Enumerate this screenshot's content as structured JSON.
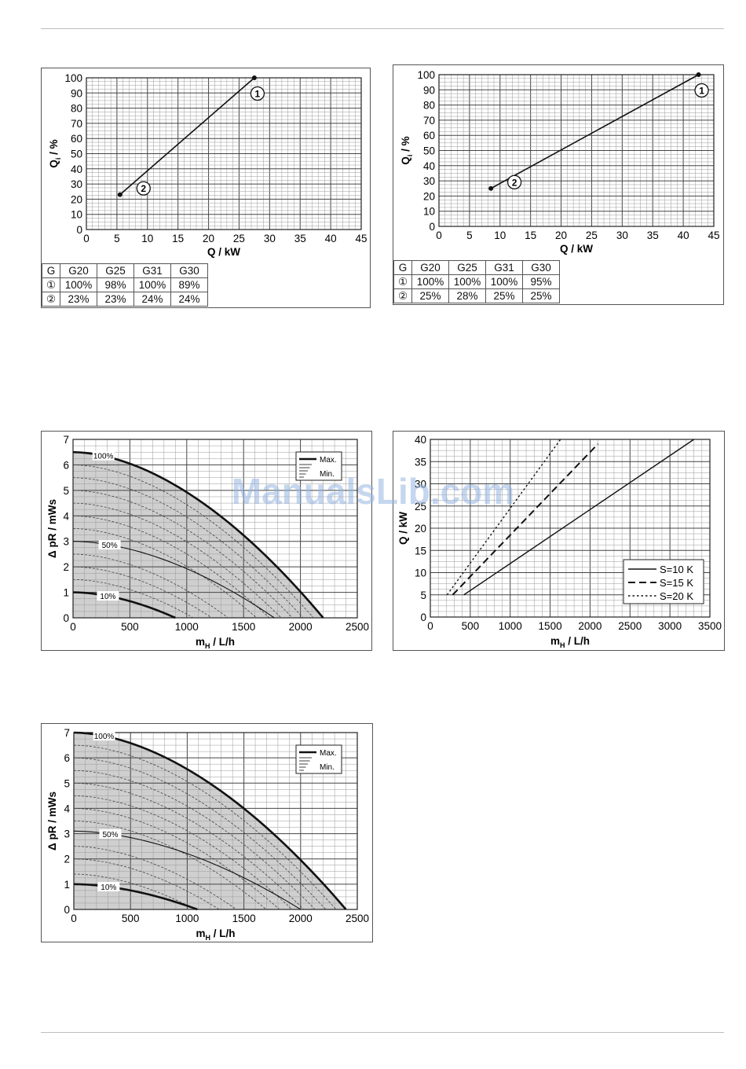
{
  "page": {
    "watermark": "ManualsLib.com"
  },
  "tables": [
    {
      "header": [
        "G",
        "G20",
        "G25",
        "G31",
        "G30"
      ],
      "rows": [
        [
          "①",
          "100%",
          "98%",
          "100%",
          "89%"
        ],
        [
          "②",
          "23%",
          "23%",
          "24%",
          "24%"
        ]
      ]
    },
    {
      "header": [
        "G",
        "G20",
        "G25",
        "G31",
        "G30"
      ],
      "rows": [
        [
          "①",
          "100%",
          "100%",
          "100%",
          "95%"
        ],
        [
          "②",
          "25%",
          "28%",
          "25%",
          "25%"
        ]
      ]
    }
  ],
  "chart_data": [
    {
      "type": "line",
      "xlabel": "Q / kW",
      "ylabel": "Qi / %",
      "xlim": [
        0,
        45
      ],
      "ylim": [
        0,
        100
      ],
      "x_ticks": [
        "0",
        "5",
        "10",
        "15",
        "20",
        "25",
        "30",
        "35",
        "40",
        "45"
      ],
      "y_ticks": [
        "0",
        "10",
        "20",
        "30",
        "40",
        "50",
        "60",
        "70",
        "80",
        "90",
        "100"
      ],
      "grid": true,
      "points": [
        {
          "label": "2",
          "x": 5.5,
          "y": 23
        },
        {
          "label": "1",
          "x": 27.5,
          "y": 100
        }
      ]
    },
    {
      "type": "line",
      "xlabel": "Q / kW",
      "ylabel": "Qi / %",
      "xlim": [
        0,
        45
      ],
      "ylim": [
        0,
        100
      ],
      "x_ticks": [
        "0",
        "5",
        "10",
        "15",
        "20",
        "25",
        "30",
        "35",
        "40",
        "45"
      ],
      "y_ticks": [
        "0",
        "10",
        "20",
        "30",
        "40",
        "50",
        "60",
        "70",
        "80",
        "90",
        "100"
      ],
      "grid": true,
      "points": [
        {
          "label": "2",
          "x": 8.5,
          "y": 25
        },
        {
          "label": "1",
          "x": 42.5,
          "y": 100
        }
      ]
    },
    {
      "type": "area",
      "xlabel": "mH / L/h",
      "ylabel": "Δ pR / mWs",
      "xlim": [
        0,
        2500
      ],
      "ylim": [
        0,
        7
      ],
      "x_ticks": [
        "0",
        "500",
        "1000",
        "1500",
        "2000",
        "2500"
      ],
      "y_ticks": [
        "0",
        "1",
        "2",
        "3",
        "4",
        "5",
        "6",
        "7"
      ],
      "grid": true,
      "legend": {
        "position": "top-right",
        "entries": [
          "Max.",
          "Min."
        ]
      },
      "series": [
        {
          "name": "100%",
          "x": [
            0,
            500,
            1000,
            1500,
            2000,
            2200
          ],
          "values": [
            6.5,
            6.0,
            4.8,
            3.2,
            1.2,
            0
          ]
        },
        {
          "name": "50%",
          "x": [
            0,
            500,
            1000,
            1500,
            1770
          ],
          "values": [
            3.0,
            2.7,
            1.9,
            0.9,
            0
          ]
        },
        {
          "name": "10%",
          "x": [
            0,
            500,
            900
          ],
          "values": [
            1.0,
            0.6,
            0
          ]
        }
      ],
      "intermediate_curves_shut_off": [
        6.0,
        5.5,
        5.0,
        4.5,
        4.0,
        3.5,
        2.5,
        2.0,
        1.5
      ],
      "annotations": [
        "100%",
        "50%",
        "10%"
      ]
    },
    {
      "type": "line",
      "xlabel": "mH / L/h",
      "ylabel": "Q / kW",
      "xlim": [
        0,
        3500
      ],
      "ylim": [
        0,
        40
      ],
      "x_ticks": [
        "0",
        "500",
        "1000",
        "1500",
        "2000",
        "2500",
        "3000",
        "3500"
      ],
      "y_ticks": [
        "0",
        "5",
        "10",
        "15",
        "20",
        "25",
        "30",
        "35",
        "40"
      ],
      "grid": true,
      "legend": {
        "position": "bottom-right",
        "entries": [
          "S=10 K",
          "S=15 K",
          "S=20 K"
        ]
      },
      "series": [
        {
          "name": "S=10 K",
          "style": "solid",
          "x": [
            420,
            3300
          ],
          "values": [
            5,
            40
          ]
        },
        {
          "name": "S=15 K",
          "style": "dashed",
          "x": [
            280,
            2100
          ],
          "values": [
            5,
            39
          ]
        },
        {
          "name": "S=20 K",
          "style": "dotted",
          "x": [
            210,
            1630
          ],
          "values": [
            5,
            40
          ]
        }
      ]
    },
    {
      "type": "area",
      "xlabel": "mH / L/h",
      "ylabel": "Δ pR / mWs",
      "xlim": [
        0,
        2500
      ],
      "ylim": [
        0,
        7
      ],
      "x_ticks": [
        "0",
        "500",
        "1000",
        "1500",
        "2000",
        "2500"
      ],
      "y_ticks": [
        "0",
        "1",
        "2",
        "3",
        "4",
        "5",
        "6",
        "7"
      ],
      "grid": true,
      "legend": {
        "position": "top-right",
        "entries": [
          "Max.",
          "Min."
        ]
      },
      "series": [
        {
          "name": "100%",
          "x": [
            0,
            500,
            1000,
            1500,
            2000,
            2400
          ],
          "values": [
            7.0,
            6.4,
            5.2,
            3.6,
            1.8,
            0
          ]
        },
        {
          "name": "50%",
          "x": [
            0,
            500,
            1000,
            1500,
            2000
          ],
          "values": [
            3.1,
            2.9,
            2.2,
            1.3,
            0
          ]
        },
        {
          "name": "10%",
          "x": [
            0,
            500,
            1090
          ],
          "values": [
            1.0,
            0.8,
            0
          ]
        }
      ],
      "intermediate_curves_shut_off": [
        6.5,
        6.0,
        5.5,
        5.0,
        4.5,
        4.0,
        3.5,
        2.5,
        2.0,
        1.4
      ],
      "annotations": [
        "100%",
        "50%",
        "10%"
      ]
    }
  ]
}
